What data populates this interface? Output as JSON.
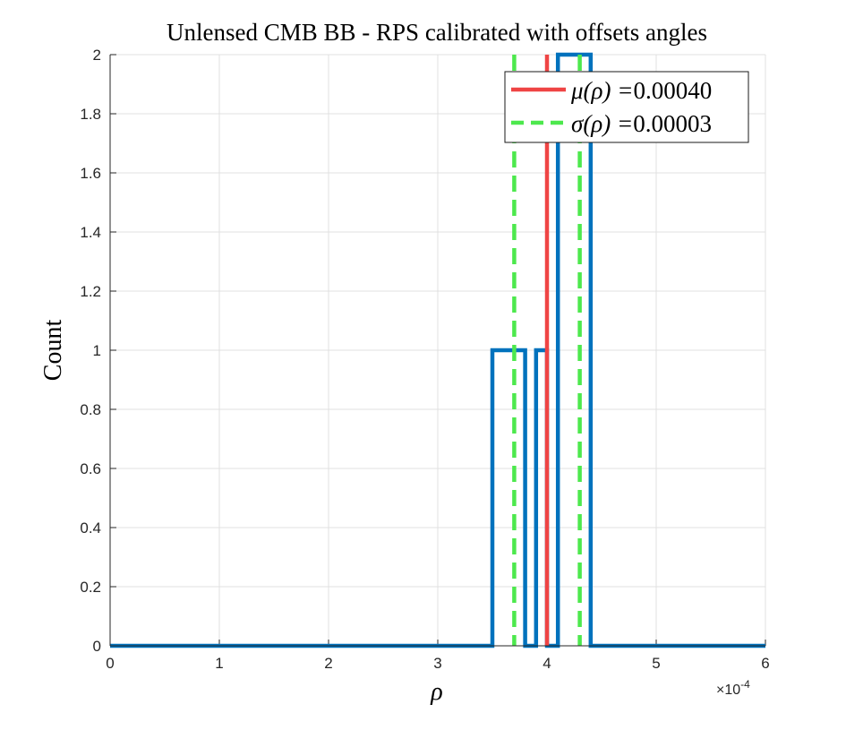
{
  "chart_data": {
    "type": "histogram",
    "title": "Unlensed CMB BB - RPS calibrated with offsets angles",
    "xlabel": "ρ",
    "ylabel": "Count",
    "x_exponent_label": "×10",
    "x_exponent_power": "-4",
    "x_scale": 0.0001,
    "xlim": [
      0,
      6
    ],
    "ylim": [
      0,
      2
    ],
    "x_ticks": [
      0,
      1,
      2,
      3,
      4,
      5,
      6
    ],
    "x_tick_labels": [
      "0",
      "1",
      "2",
      "3",
      "4",
      "5",
      "6"
    ],
    "y_ticks": [
      0,
      0.2,
      0.4,
      0.6,
      0.8,
      1,
      1.2,
      1.4,
      1.6,
      1.8,
      2
    ],
    "y_tick_labels": [
      "0",
      "0.2",
      "0.4",
      "0.6",
      "0.8",
      "1",
      "1.2",
      "1.4",
      "1.6",
      "1.8",
      "2"
    ],
    "grid": true,
    "bins": [
      {
        "x0": 3.5,
        "x1": 3.8,
        "count": 1
      },
      {
        "x0": 3.8,
        "x1": 3.9,
        "count": 0
      },
      {
        "x0": 3.9,
        "x1": 4.0,
        "count": 1
      },
      {
        "x0": 4.0,
        "x1": 4.1,
        "count": 0
      },
      {
        "x0": 4.1,
        "x1": 4.4,
        "count": 2
      }
    ],
    "mean_line": {
      "x": 4.0,
      "label_math": "μ(ρ) =",
      "label_value": "0.00040",
      "color": "#ef4444"
    },
    "sigma_lines": {
      "x": [
        3.7,
        4.3
      ],
      "label_math": "σ(ρ) =",
      "label_value": "0.00003",
      "color": "#4de84d"
    },
    "histogram_color": "#0072bd",
    "legend_position": "top-right"
  }
}
